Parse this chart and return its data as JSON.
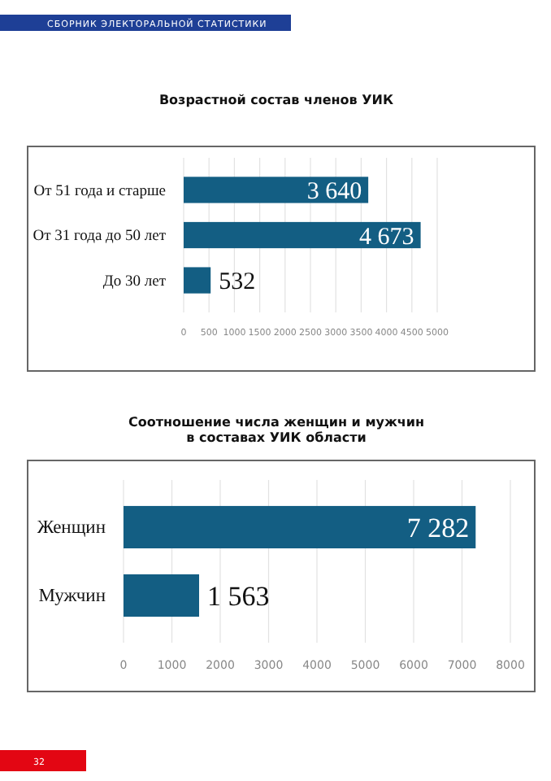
{
  "chart_data": [
    {
      "type": "bar",
      "orientation": "horizontal",
      "title": "Возрастной состав членов УИК",
      "categories": [
        "От 51 года и старше",
        "От 31 года до 50 лет",
        "До 30 лет"
      ],
      "values": [
        3640,
        4673,
        532
      ],
      "value_labels": [
        "3 640",
        "4 673",
        "532"
      ],
      "color": "#135e83",
      "xlim": [
        0,
        5000
      ],
      "xticks": [
        0,
        500,
        1000,
        1500,
        2000,
        2500,
        3000,
        3500,
        4000,
        4500,
        5000
      ],
      "grid": "x",
      "annotations": [
        "СБОРНИК ЭЛЕКТОРАЛЬНОЙ СТАТИСТИКИ"
      ]
    },
    {
      "type": "bar",
      "orientation": "horizontal",
      "title": "Соотношение числа женщин и мужчин\nв составах УИК области",
      "categories": [
        "Женщин",
        "Мужчин"
      ],
      "values": [
        7282,
        1563
      ],
      "value_labels": [
        "7 282",
        "1 563"
      ],
      "color": "#135e83",
      "xlim": [
        0,
        8000
      ],
      "xticks": [
        0,
        1000,
        2000,
        3000,
        4000,
        5000,
        6000,
        7000,
        8000
      ],
      "grid": "x",
      "annotations": [
        "32"
      ]
    }
  ]
}
